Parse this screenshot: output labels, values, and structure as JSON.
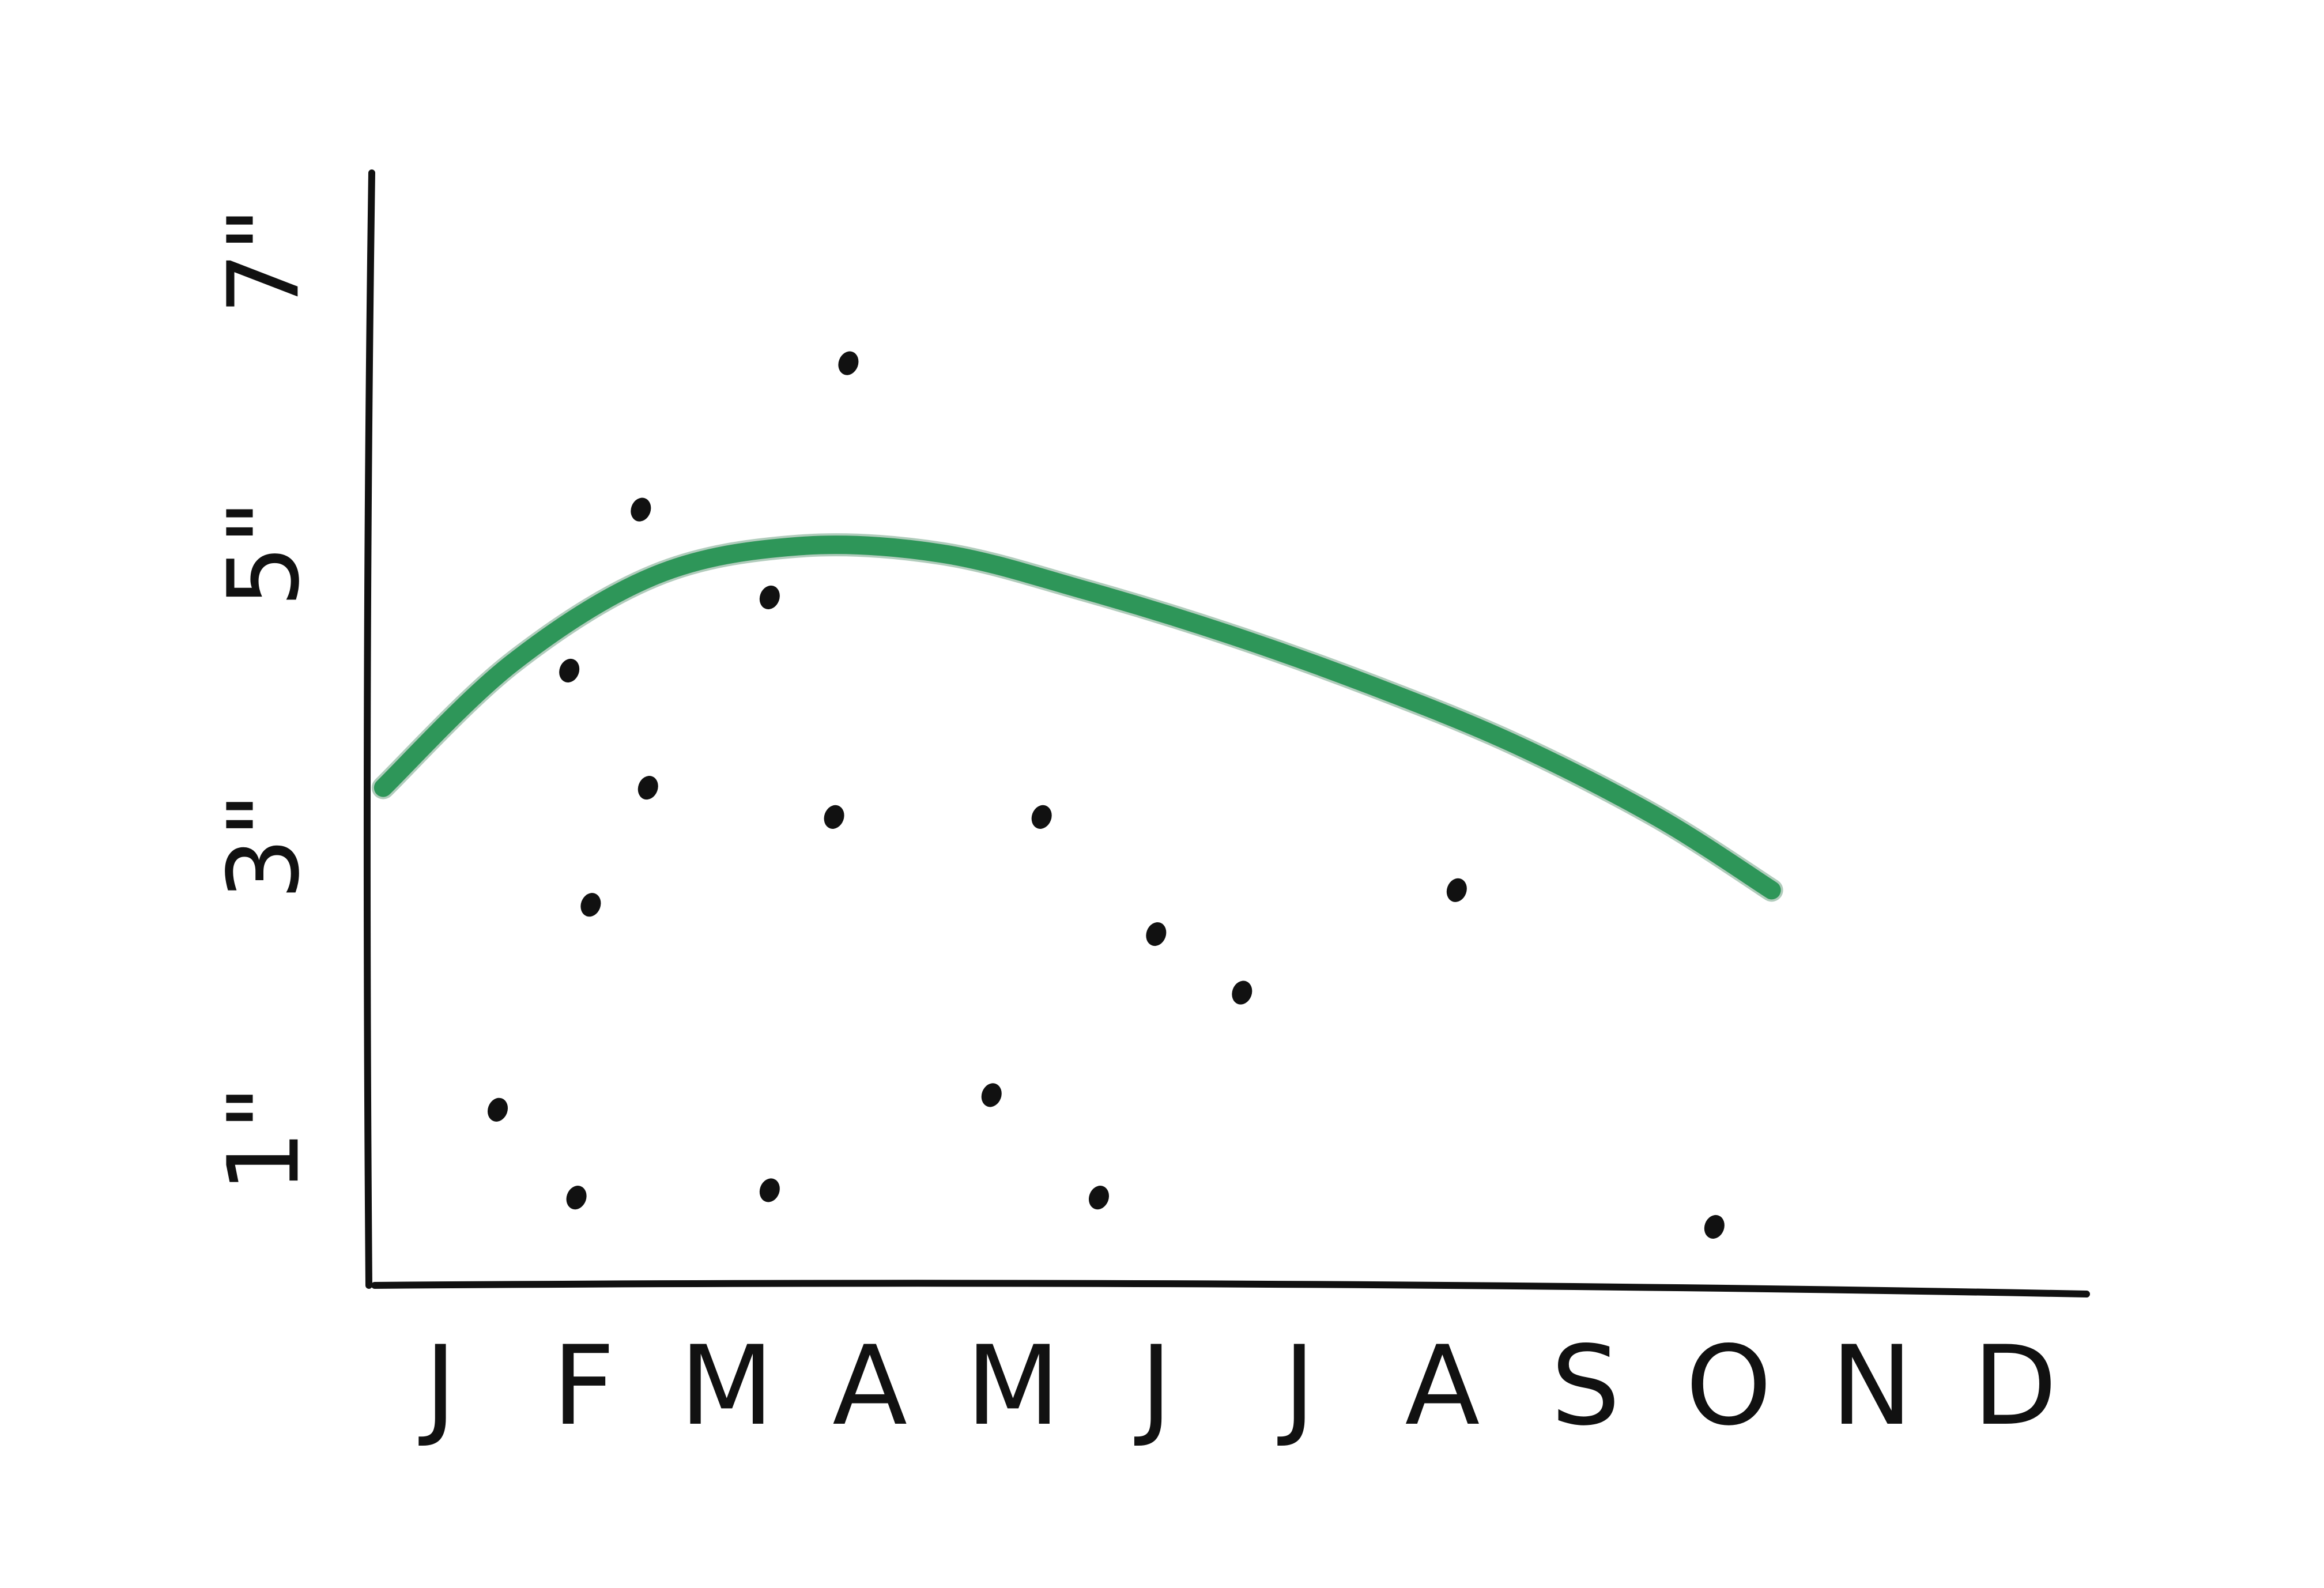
{
  "chart_data": {
    "type": "scatter",
    "title": "",
    "xlabel": "",
    "ylabel": "",
    "categories": [
      "J",
      "F",
      "M",
      "A",
      "M",
      "J",
      "J",
      "A",
      "S",
      "O",
      "N",
      "D"
    ],
    "y_ticks": [
      {
        "value": 1,
        "label": "1\""
      },
      {
        "value": 3,
        "label": "3\""
      },
      {
        "value": 5,
        "label": "5\""
      },
      {
        "value": 7,
        "label": "7\""
      }
    ],
    "ylim": [
      0,
      7.6
    ],
    "xlim": [
      -0.5,
      11.5
    ],
    "grid": false,
    "points": [
      {
        "x": 0.4,
        "y": 1.2
      },
      {
        "x": 0.9,
        "y": 4.2
      },
      {
        "x": 0.95,
        "y": 0.6
      },
      {
        "x": 1.05,
        "y": 2.6
      },
      {
        "x": 1.4,
        "y": 5.3
      },
      {
        "x": 1.45,
        "y": 3.4
      },
      {
        "x": 2.3,
        "y": 4.7
      },
      {
        "x": 2.3,
        "y": 0.65
      },
      {
        "x": 2.75,
        "y": 3.2
      },
      {
        "x": 2.85,
        "y": 6.3
      },
      {
        "x": 3.85,
        "y": 1.3
      },
      {
        "x": 4.2,
        "y": 3.2
      },
      {
        "x": 4.6,
        "y": 0.6
      },
      {
        "x": 5.0,
        "y": 2.4
      },
      {
        "x": 5.6,
        "y": 2.0
      },
      {
        "x": 7.1,
        "y": 2.7
      },
      {
        "x": 8.9,
        "y": 0.4
      }
    ],
    "trend": {
      "color": "#2e9659",
      "x": [
        -0.4,
        0.5,
        1.5,
        2.5,
        3.5,
        4.5,
        5.5,
        6.5,
        7.5,
        8.5,
        9.3
      ],
      "y": [
        3.4,
        4.25,
        4.85,
        5.05,
        5.0,
        4.75,
        4.45,
        4.1,
        3.7,
        3.2,
        2.7
      ]
    },
    "colors": {
      "ink": "#111111",
      "trend": "#2e9659",
      "trend_dark": "#1f6e3f"
    }
  }
}
